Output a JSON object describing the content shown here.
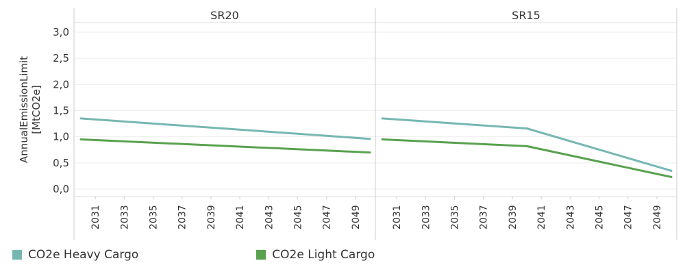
{
  "chart_data": {
    "type": "line",
    "ylabel": "AnnualEmissionLimit [MtCO2e]",
    "ylim": [
      0,
      3.0
    ],
    "yticks": [
      "0,0",
      "0,5",
      "1,0",
      "1,5",
      "2,0",
      "2,5",
      "3,0"
    ],
    "x_tick_labels": [
      "2031",
      "2033",
      "2035",
      "2037",
      "2039",
      "2041",
      "2043",
      "2045",
      "2047",
      "2049"
    ],
    "xlim": [
      2030,
      2050
    ],
    "grid": true,
    "legend_position": "bottom",
    "panels": [
      {
        "title": "SR20",
        "x": [
          2030,
          2050
        ],
        "series": [
          {
            "name": "CO2e Heavy Cargo",
            "color": "#76b7b2",
            "values": [
              1.35,
              0.96
            ]
          },
          {
            "name": "CO2e Light Cargo",
            "color": "#59a14f",
            "values": [
              0.95,
              0.7
            ]
          }
        ]
      },
      {
        "title": "SR15",
        "x": [
          2030,
          2040,
          2050
        ],
        "series": [
          {
            "name": "CO2e Heavy Cargo",
            "color": "#76b7b2",
            "values": [
              1.35,
              1.16,
              0.35
            ]
          },
          {
            "name": "CO2e Light Cargo",
            "color": "#59a14f",
            "values": [
              0.95,
              0.82,
              0.23
            ]
          }
        ]
      }
    ]
  },
  "legend": {
    "items": [
      {
        "label": "CO2e Heavy Cargo",
        "color": "#76b7b2"
      },
      {
        "label": "CO2e Light Cargo",
        "color": "#59a14f"
      }
    ]
  }
}
